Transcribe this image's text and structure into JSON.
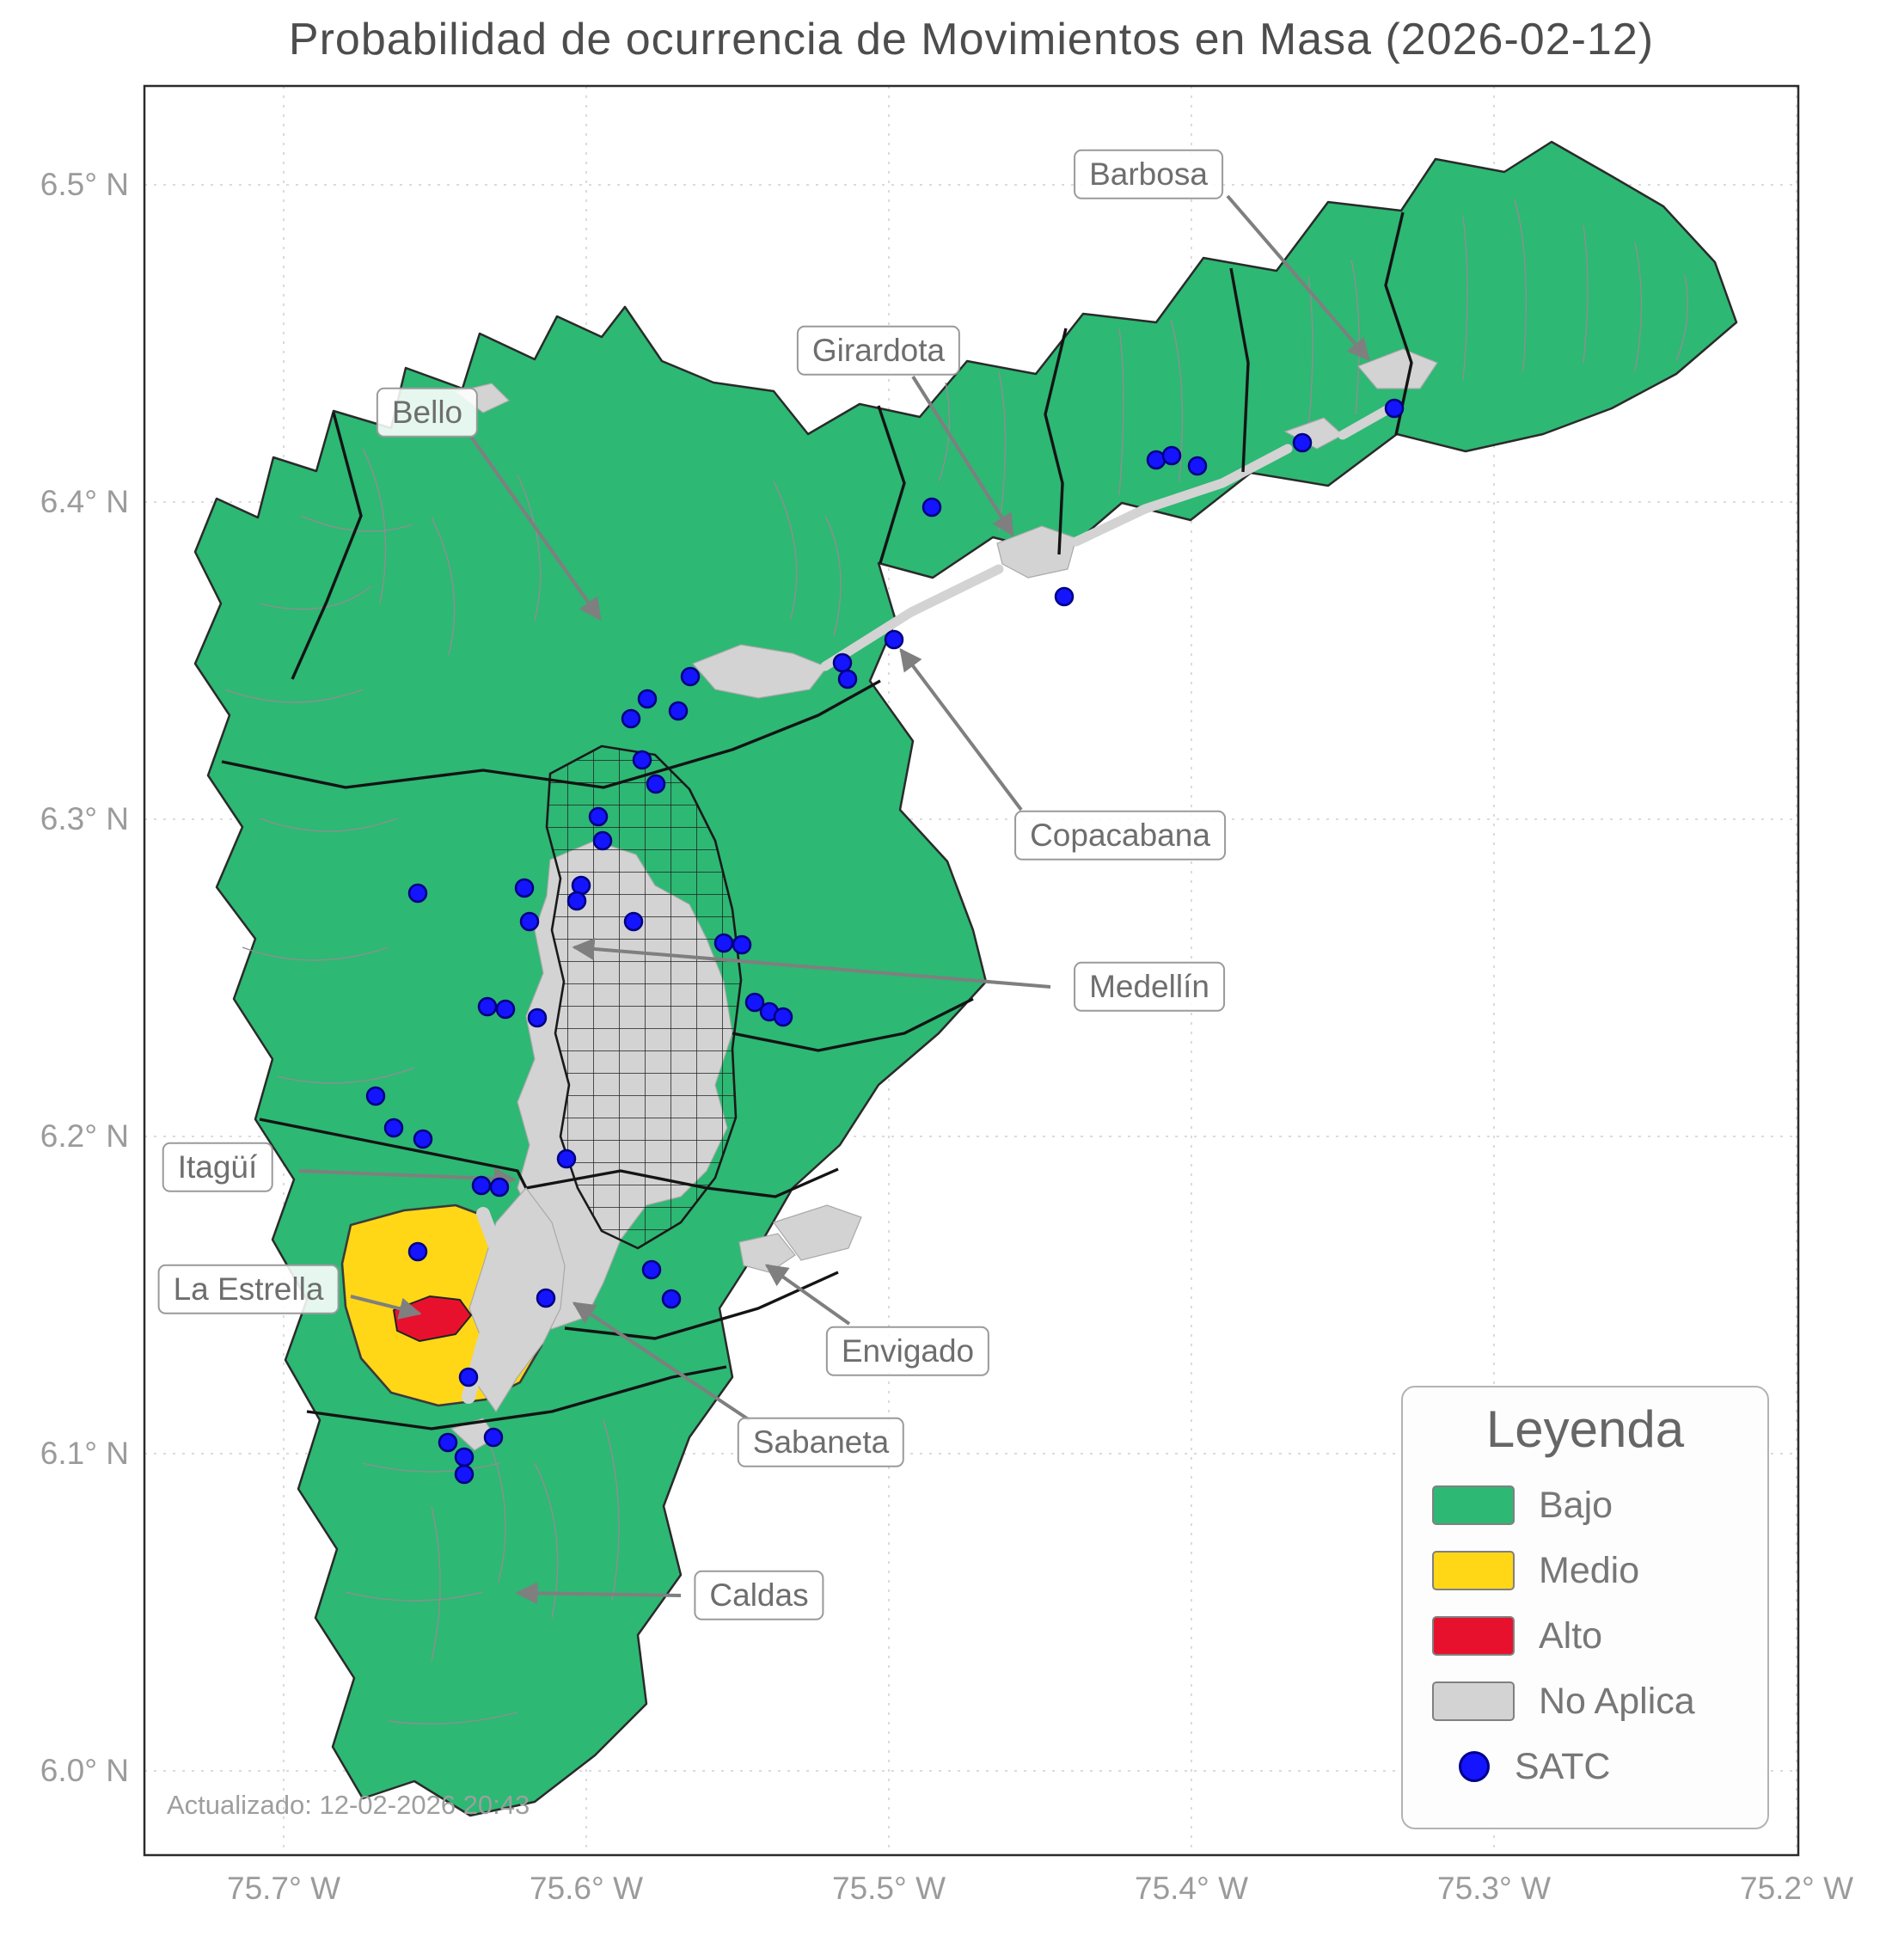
{
  "title": "Probabilidad de ocurrencia de Movimientos en Masa (2026-02-12)",
  "footer": {
    "updated": "Actualizado: 12-02-2026 20:43"
  },
  "axes": {
    "lat_ticks": [
      {
        "label": "6.5° N"
      },
      {
        "label": "6.4° N"
      },
      {
        "label": "6.3° N"
      },
      {
        "label": "6.2° N"
      },
      {
        "label": "6.1° N"
      },
      {
        "label": "6.0° N"
      }
    ],
    "lon_ticks": [
      {
        "label": "75.7° W"
      },
      {
        "label": "75.6° W"
      },
      {
        "label": "75.5° W"
      },
      {
        "label": "75.4° W"
      },
      {
        "label": "75.3° W"
      },
      {
        "label": "75.2° W"
      }
    ]
  },
  "callouts": [
    {
      "id": "barbosa",
      "text": "Barbosa"
    },
    {
      "id": "girardota",
      "text": "Girardota"
    },
    {
      "id": "bello",
      "text": "Bello"
    },
    {
      "id": "copacabana",
      "text": "Copacabana"
    },
    {
      "id": "medellin",
      "text": "Medellín"
    },
    {
      "id": "itagui",
      "text": "Itagüí"
    },
    {
      "id": "la-estrella",
      "text": "La Estrella"
    },
    {
      "id": "envigado",
      "text": "Envigado"
    },
    {
      "id": "sabaneta",
      "text": "Sabaneta"
    },
    {
      "id": "caldas",
      "text": "Caldas"
    }
  ],
  "legend": {
    "title": "Leyenda",
    "items": [
      {
        "label": "Bajo",
        "color": "#2db874",
        "type": "swatch"
      },
      {
        "label": "Medio",
        "color": "#ffd717",
        "type": "swatch"
      },
      {
        "label": "Alto",
        "color": "#e8112d",
        "type": "swatch"
      },
      {
        "label": "No Aplica",
        "color": "#d3d3d3",
        "type": "swatch"
      },
      {
        "label": "SATC",
        "color": "#1414ff",
        "type": "dot"
      }
    ]
  },
  "map": {
    "risk_levels": {
      "bajo": "#2db874",
      "medio": "#ffd717",
      "alto": "#e8112d",
      "no_aplica": "#d3d3d3"
    },
    "satc_color": "#1414ff",
    "satc_points": [
      [
        1622,
        475
      ],
      [
        1515,
        515
      ],
      [
        1345,
        535
      ],
      [
        1363,
        530
      ],
      [
        1393,
        542
      ],
      [
        1238,
        694
      ],
      [
        1084,
        590
      ],
      [
        1040,
        744
      ],
      [
        980,
        771
      ],
      [
        986,
        790
      ],
      [
        803,
        787
      ],
      [
        789,
        827
      ],
      [
        753,
        813
      ],
      [
        734,
        836
      ],
      [
        747,
        884
      ],
      [
        763,
        912
      ],
      [
        696,
        950
      ],
      [
        701,
        978
      ],
      [
        676,
        1030
      ],
      [
        671,
        1048
      ],
      [
        610,
        1033
      ],
      [
        616,
        1072
      ],
      [
        486,
        1039
      ],
      [
        737,
        1072
      ],
      [
        842,
        1097
      ],
      [
        863,
        1099
      ],
      [
        878,
        1166
      ],
      [
        895,
        1177
      ],
      [
        911,
        1183
      ],
      [
        567,
        1171
      ],
      [
        588,
        1174
      ],
      [
        625,
        1184
      ],
      [
        437,
        1275
      ],
      [
        458,
        1312
      ],
      [
        492,
        1325
      ],
      [
        659,
        1348
      ],
      [
        560,
        1379
      ],
      [
        581,
        1381
      ],
      [
        486,
        1456
      ],
      [
        635,
        1510
      ],
      [
        758,
        1477
      ],
      [
        781,
        1511
      ],
      [
        545,
        1602
      ],
      [
        521,
        1678
      ],
      [
        574,
        1672
      ],
      [
        540,
        1695
      ],
      [
        540,
        1715
      ]
    ]
  }
}
